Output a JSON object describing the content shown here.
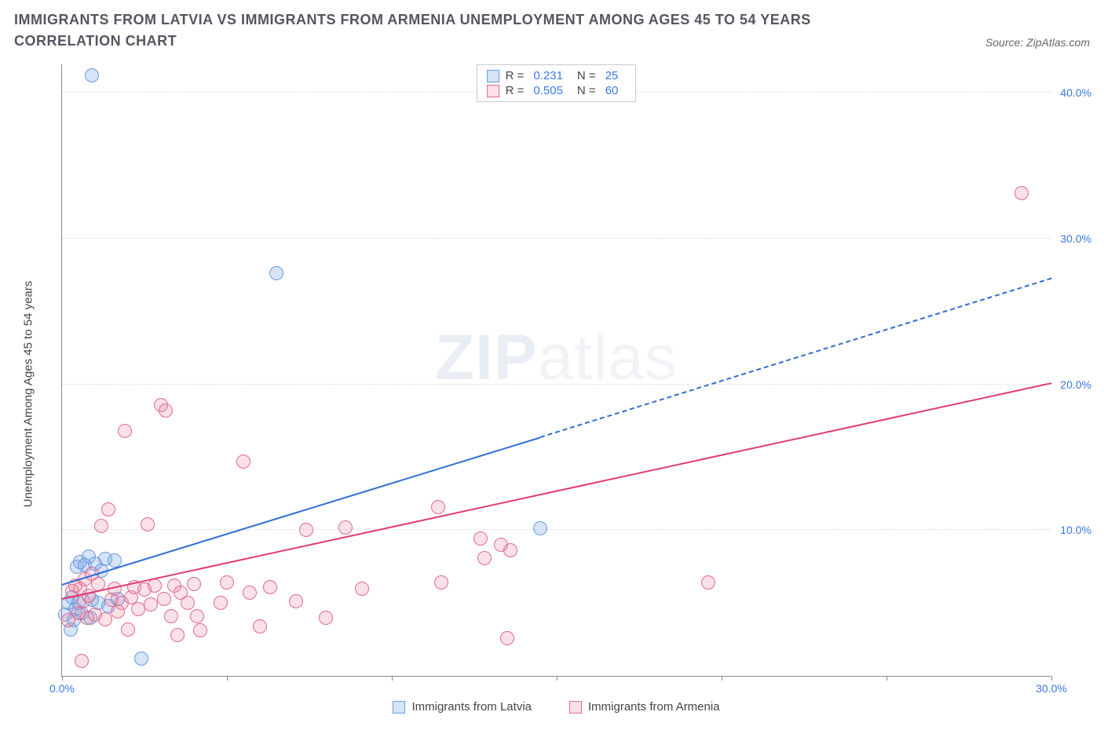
{
  "title": "IMMIGRANTS FROM LATVIA VS IMMIGRANTS FROM ARMENIA UNEMPLOYMENT AMONG AGES 45 TO 54 YEARS CORRELATION CHART",
  "source_label": "Source: ZipAtlas.com",
  "watermark": {
    "bold": "ZIP",
    "light": "atlas"
  },
  "chart": {
    "type": "scatter",
    "ylabel": "Unemployment Among Ages 45 to 54 years",
    "xlim": [
      0,
      30
    ],
    "ylim": [
      0,
      42
    ],
    "background_color": "#ffffff",
    "grid_color": "#e0e0e0",
    "axis_color": "#888888",
    "tick_label_color": "#3b78e7",
    "marker_radius": 9,
    "marker_border_width": 1.5,
    "x_ticks": [
      0,
      5,
      10,
      15,
      20,
      25,
      30
    ],
    "x_tick_labels": {
      "0": "0.0%",
      "30": "30.0%"
    },
    "y_ticks": [
      10,
      20,
      30,
      40
    ],
    "y_tick_labels": {
      "10": "10.0%",
      "20": "20.0%",
      "30": "30.0%",
      "40": "40.0%"
    },
    "series": [
      {
        "key": "latvia",
        "label": "Immigrants from Latvia",
        "fill": "rgba(120,165,230,0.30)",
        "stroke": "#6b9ae0",
        "stats": {
          "R": "0.231",
          "N": "25"
        },
        "trend": {
          "color": "#2f6fd0",
          "width": 2,
          "solid_from": [
            0,
            6.2
          ],
          "solid_to": [
            14.5,
            16.3
          ],
          "dash_to": [
            30,
            27.2
          ]
        },
        "points": [
          [
            0.1,
            4.2
          ],
          [
            0.2,
            5.0
          ],
          [
            0.25,
            3.2
          ],
          [
            0.3,
            5.4
          ],
          [
            0.35,
            3.8
          ],
          [
            0.4,
            4.6
          ],
          [
            0.45,
            7.5
          ],
          [
            0.5,
            5.0
          ],
          [
            0.55,
            7.8
          ],
          [
            0.6,
            4.3
          ],
          [
            0.7,
            7.6
          ],
          [
            0.8,
            8.2
          ],
          [
            0.85,
            4.0
          ],
          [
            0.9,
            5.2
          ],
          [
            1.0,
            7.7
          ],
          [
            1.1,
            5.0
          ],
          [
            1.2,
            7.2
          ],
          [
            1.3,
            8.0
          ],
          [
            1.4,
            4.8
          ],
          [
            1.6,
            7.9
          ],
          [
            2.4,
            1.2
          ],
          [
            0.9,
            41.2
          ],
          [
            6.5,
            27.6
          ],
          [
            14.5,
            10.1
          ],
          [
            1.7,
            5.3
          ]
        ]
      },
      {
        "key": "armenia",
        "label": "Immigrants from Armenia",
        "fill": "rgba(235,130,160,0.25)",
        "stroke": "#e06b8f",
        "stats": {
          "R": "0.505",
          "N": "60"
        },
        "trend": {
          "color": "#e03b72",
          "width": 2.5,
          "solid_from": [
            0,
            5.2
          ],
          "solid_to": [
            30,
            20.0
          ],
          "dash_to": null
        },
        "points": [
          [
            0.2,
            3.8
          ],
          [
            0.3,
            5.8
          ],
          [
            0.4,
            6.2
          ],
          [
            0.5,
            4.3
          ],
          [
            0.55,
            6.0
          ],
          [
            0.6,
            1.0
          ],
          [
            0.65,
            5.1
          ],
          [
            0.7,
            6.6
          ],
          [
            0.75,
            4.0
          ],
          [
            0.8,
            5.5
          ],
          [
            0.9,
            7.0
          ],
          [
            1.0,
            4.2
          ],
          [
            1.1,
            6.3
          ],
          [
            1.2,
            10.3
          ],
          [
            1.3,
            3.9
          ],
          [
            1.4,
            11.4
          ],
          [
            1.5,
            5.2
          ],
          [
            1.6,
            6.0
          ],
          [
            1.7,
            4.4
          ],
          [
            1.8,
            5.0
          ],
          [
            1.9,
            16.8
          ],
          [
            2.0,
            3.2
          ],
          [
            2.1,
            5.4
          ],
          [
            2.2,
            6.1
          ],
          [
            2.3,
            4.6
          ],
          [
            2.5,
            5.9
          ],
          [
            2.6,
            10.4
          ],
          [
            2.7,
            4.9
          ],
          [
            2.8,
            6.2
          ],
          [
            3.0,
            18.6
          ],
          [
            3.1,
            5.3
          ],
          [
            3.15,
            18.2
          ],
          [
            3.3,
            4.1
          ],
          [
            3.4,
            6.2
          ],
          [
            3.5,
            2.8
          ],
          [
            3.6,
            5.7
          ],
          [
            3.8,
            5.0
          ],
          [
            4.0,
            6.3
          ],
          [
            4.1,
            4.1
          ],
          [
            4.2,
            3.1
          ],
          [
            4.8,
            5.0
          ],
          [
            5.0,
            6.4
          ],
          [
            5.5,
            14.7
          ],
          [
            5.7,
            5.7
          ],
          [
            6.3,
            6.1
          ],
          [
            7.1,
            5.1
          ],
          [
            7.4,
            10.0
          ],
          [
            8.0,
            4.0
          ],
          [
            8.6,
            10.2
          ],
          [
            9.1,
            6.0
          ],
          [
            11.4,
            11.6
          ],
          [
            11.5,
            6.4
          ],
          [
            12.7,
            9.4
          ],
          [
            12.8,
            8.1
          ],
          [
            13.3,
            9.0
          ],
          [
            13.5,
            2.6
          ],
          [
            13.6,
            8.6
          ],
          [
            19.6,
            6.4
          ],
          [
            29.1,
            33.1
          ],
          [
            6.0,
            3.4
          ]
        ]
      }
    ]
  },
  "legend_top": {
    "labels": {
      "r": "R =",
      "n": "N ="
    }
  }
}
